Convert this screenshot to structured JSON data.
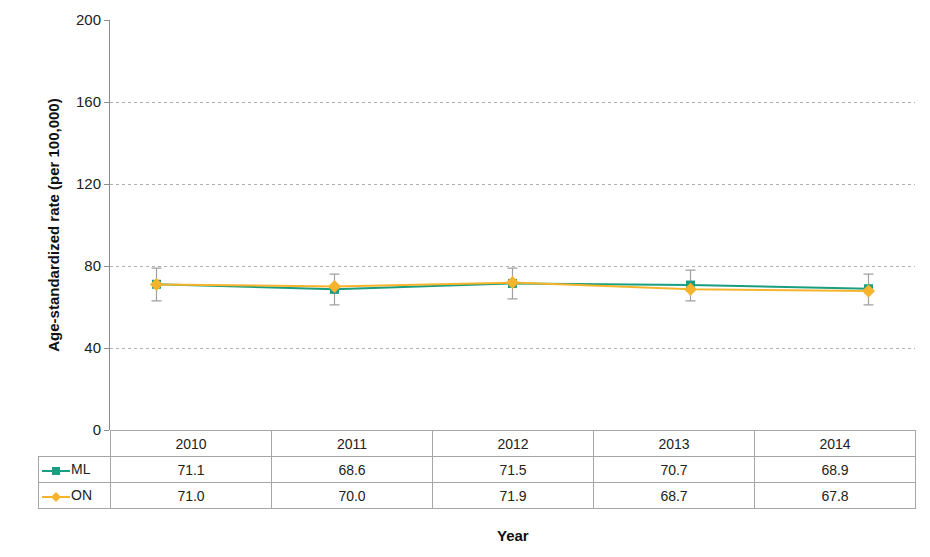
{
  "chart_data": {
    "type": "line",
    "x_label": "Year",
    "y_label": "Age-standardized rate (per 100,000)",
    "categories": [
      "2010",
      "2011",
      "2012",
      "2013",
      "2014"
    ],
    "series": [
      {
        "name": "ML",
        "color": "#1a9e82",
        "marker": "square",
        "values": [
          71.1,
          68.6,
          71.5,
          70.7,
          68.9
        ],
        "value_labels": [
          "71.1",
          "68.6",
          "71.5",
          "70.7",
          "68.9"
        ],
        "error_lower": [
          63,
          61,
          64,
          63,
          61
        ],
        "error_upper": [
          79,
          76,
          79,
          78,
          76
        ]
      },
      {
        "name": "ON",
        "color": "#f6b42d",
        "marker": "diamond",
        "values": [
          71.0,
          70.0,
          71.9,
          68.7,
          67.8
        ],
        "value_labels": [
          "71.0",
          "70.0",
          "71.9",
          "68.7",
          "67.8"
        ]
      }
    ],
    "ylim": [
      0,
      200
    ],
    "yticks": [
      0,
      40,
      80,
      120,
      160,
      200
    ],
    "grid": true
  }
}
